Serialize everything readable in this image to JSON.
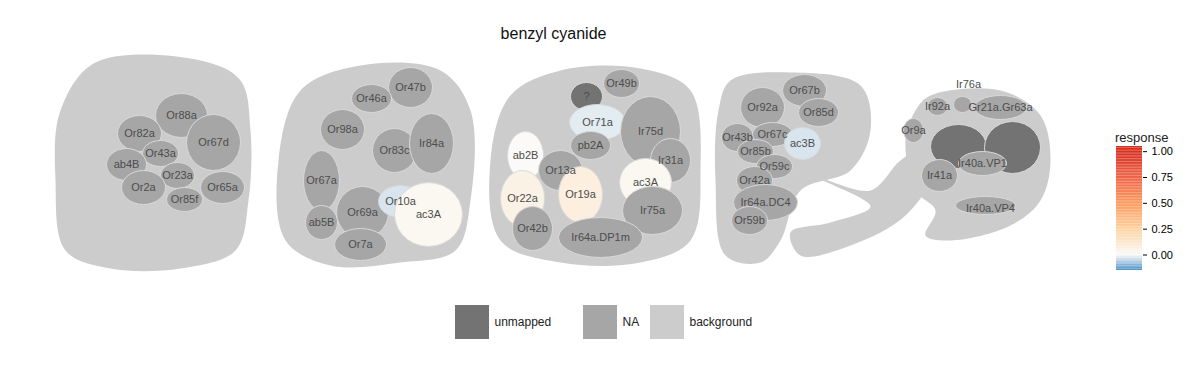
{
  "chart_data": {
    "type": "glomerulus_map",
    "title": "benzyl cyanide",
    "panels": [
      {
        "glomeruli": [
          {
            "label": "Or88a",
            "category": "NA"
          },
          {
            "label": "Or82a",
            "category": "NA"
          },
          {
            "label": "Or67d",
            "category": "NA"
          },
          {
            "label": "Or43a",
            "category": "NA"
          },
          {
            "label": "ab4B",
            "category": "NA"
          },
          {
            "label": "Or23a",
            "category": "NA"
          },
          {
            "label": "Or2a",
            "category": "NA"
          },
          {
            "label": "Or85f",
            "category": "NA"
          },
          {
            "label": "Or65a",
            "category": "NA"
          }
        ]
      },
      {
        "glomeruli": [
          {
            "label": "Or47b",
            "category": "NA"
          },
          {
            "label": "Or46a",
            "category": "NA"
          },
          {
            "label": "Or98a",
            "category": "NA"
          },
          {
            "label": "Or83c",
            "category": "NA"
          },
          {
            "label": "Ir84a",
            "category": "NA"
          },
          {
            "label": "Or67a",
            "category": "NA"
          },
          {
            "label": "ab5B",
            "category": "NA"
          },
          {
            "label": "Or69a",
            "category": "NA"
          },
          {
            "label": "Or10a",
            "value": -0.03
          },
          {
            "label": "ac3A",
            "value": 0.02
          },
          {
            "label": "Or7a",
            "category": "NA"
          }
        ]
      },
      {
        "glomeruli": [
          {
            "label": "?",
            "category": "unmapped"
          },
          {
            "label": "Or49b",
            "category": "NA"
          },
          {
            "label": "Or71a",
            "value": -0.02
          },
          {
            "label": "Ir75d",
            "category": "NA"
          },
          {
            "label": "ab2B",
            "value": 0.0
          },
          {
            "label": "pb2A",
            "category": "NA"
          },
          {
            "label": "Ir31a",
            "category": "NA"
          },
          {
            "label": "Or13a",
            "category": "NA"
          },
          {
            "label": "Or19a",
            "value": 0.07
          },
          {
            "label": "ac3A",
            "value": 0.02
          },
          {
            "label": "Or22a",
            "value": 0.05
          },
          {
            "label": "Ir75a",
            "category": "NA"
          },
          {
            "label": "Or42b",
            "category": "NA"
          },
          {
            "label": "Ir64a.DP1m",
            "category": "NA"
          }
        ]
      },
      {
        "glomeruli": [
          {
            "label": "Or67b",
            "category": "NA"
          },
          {
            "label": "Or92a",
            "category": "NA"
          },
          {
            "label": "Or85d",
            "category": "NA"
          },
          {
            "label": "Or43b",
            "category": "NA"
          },
          {
            "label": "Or67c",
            "category": "NA"
          },
          {
            "label": "ac3B",
            "value": -0.03
          },
          {
            "label": "Or85b",
            "category": "NA"
          },
          {
            "label": "Or59c",
            "category": "NA"
          },
          {
            "label": "Or42a",
            "category": "NA"
          },
          {
            "label": "Ir64a.DC4",
            "category": "NA"
          },
          {
            "label": "Or59b",
            "category": "NA"
          }
        ]
      },
      {
        "glomeruli": [
          {
            "label": "Ir76a",
            "category": "NA"
          },
          {
            "label": "Ir92a",
            "category": "NA"
          },
          {
            "label": "Gr21a.Gr63a",
            "category": "NA"
          },
          {
            "label": "Or9a",
            "category": "NA"
          },
          {
            "label": null,
            "category": "unmapped"
          },
          {
            "label": null,
            "category": "unmapped"
          },
          {
            "label": "Ir40a.VP1",
            "category": "NA"
          },
          {
            "label": "Ir41a",
            "category": "NA"
          },
          {
            "label": "Ir40a.VP4",
            "category": "NA"
          }
        ]
      }
    ],
    "legend_categories": [
      {
        "label": "unmapped",
        "color": "#737373"
      },
      {
        "label": "NA",
        "color": "#a6a6a6"
      },
      {
        "label": "background",
        "color": "#cccccc"
      }
    ],
    "colorbar": {
      "title": "response",
      "range": [
        -0.15,
        1.05
      ],
      "ticks": [
        {
          "value": 0,
          "label": "0.00"
        },
        {
          "value": 0.25,
          "label": "0.25"
        },
        {
          "value": 0.5,
          "label": "0.50"
        },
        {
          "value": 0.75,
          "label": "0.75"
        },
        {
          "value": 1,
          "label": "1.00"
        }
      ]
    }
  }
}
